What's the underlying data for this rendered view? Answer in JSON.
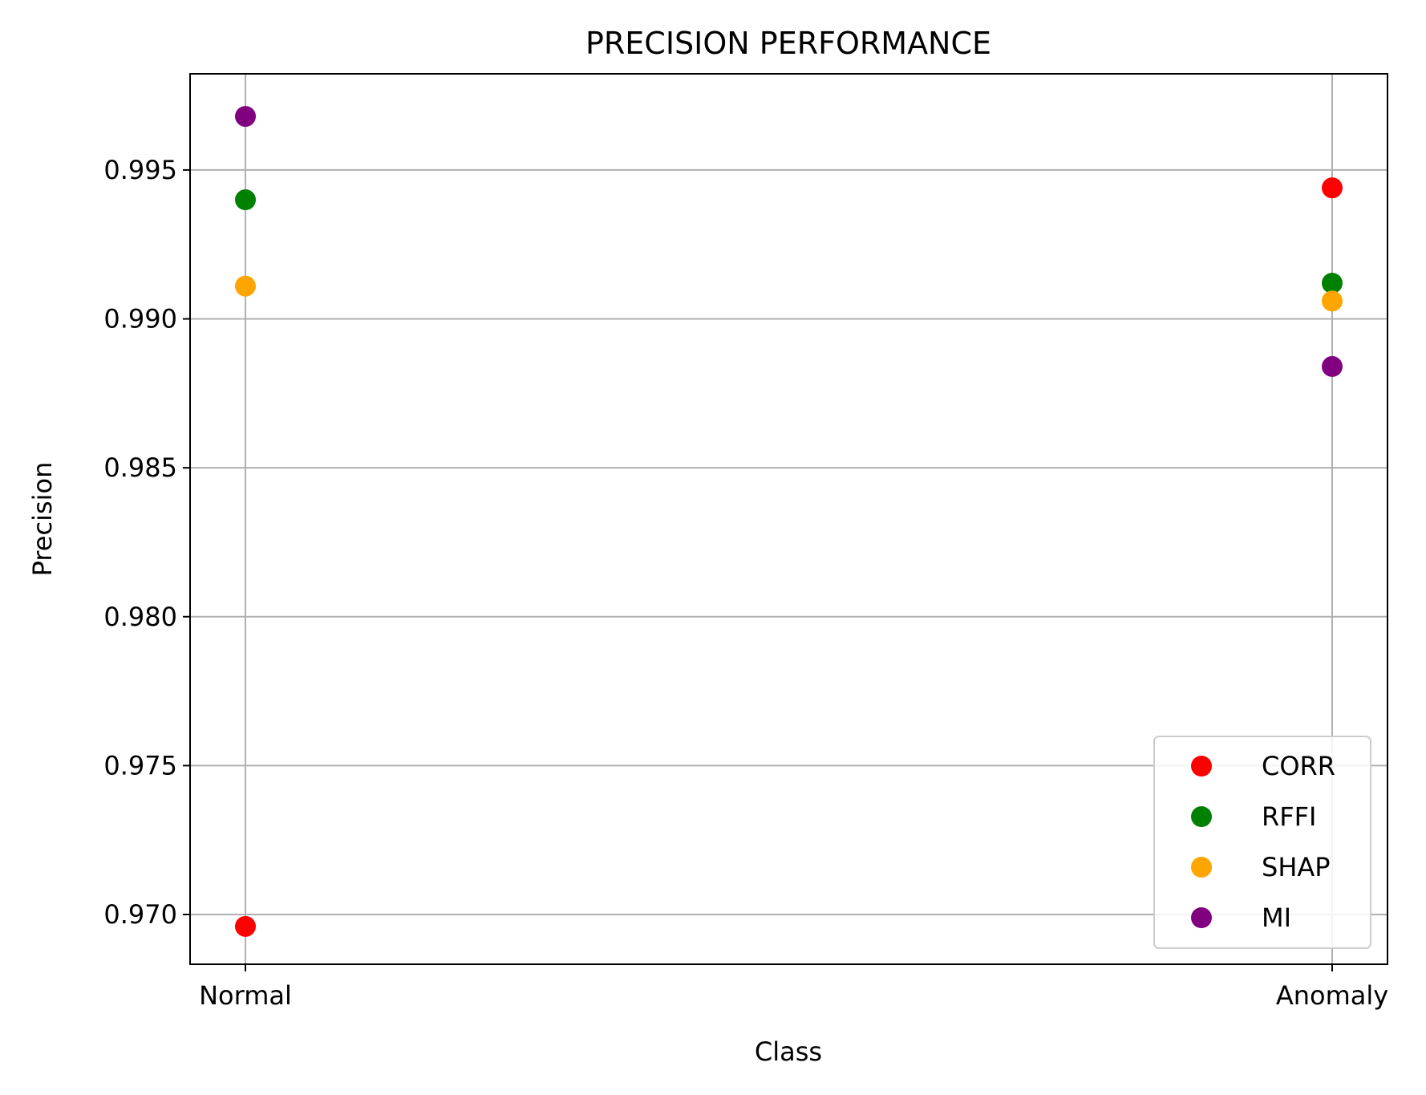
{
  "chart_data": {
    "type": "scatter",
    "title": "PRECISION PERFORMANCE",
    "xlabel": "Class",
    "ylabel": "Precision",
    "categories": [
      "Normal",
      "Anomaly"
    ],
    "series": [
      {
        "name": "CORR",
        "color": "#ff0000",
        "values": [
          0.9696,
          0.9944
        ]
      },
      {
        "name": "RFFI",
        "color": "#008000",
        "values": [
          0.994,
          0.9912
        ]
      },
      {
        "name": "SHAP",
        "color": "#ffa500",
        "values": [
          0.9911,
          0.9906
        ]
      },
      {
        "name": "MI",
        "color": "#800080",
        "values": [
          0.9968,
          0.9884
        ]
      }
    ],
    "yticks": [
      "0.970",
      "0.975",
      "0.980",
      "0.985",
      "0.990",
      "0.995"
    ],
    "ylim": [
      0.96833,
      0.99823
    ],
    "grid": true,
    "legend_position": "lower right"
  }
}
